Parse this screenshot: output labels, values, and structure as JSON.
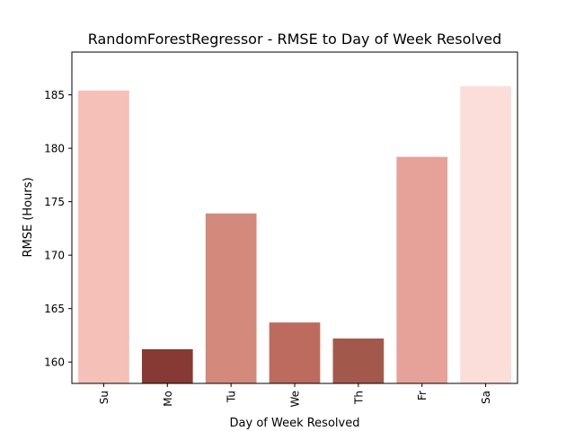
{
  "chart_data": {
    "type": "bar",
    "title": "RandomForestRegressor - RMSE to Day of Week Resolved",
    "xlabel": "Day of Week Resolved",
    "ylabel": "RMSE (Hours)",
    "categories": [
      "Su",
      "Mo",
      "Tu",
      "We",
      "Th",
      "Fr",
      "Sa"
    ],
    "values": [
      185.4,
      161.2,
      173.9,
      163.7,
      162.2,
      179.2,
      185.8
    ],
    "colors": [
      "#f4c0b8",
      "#873a33",
      "#d3897b",
      "#bd6b5f",
      "#a3584c",
      "#e6a298",
      "#fbded9"
    ],
    "ylim": [
      158.0,
      189.0
    ],
    "yticks": [
      160,
      165,
      170,
      175,
      180,
      185
    ],
    "grid": false,
    "legend": "none"
  }
}
